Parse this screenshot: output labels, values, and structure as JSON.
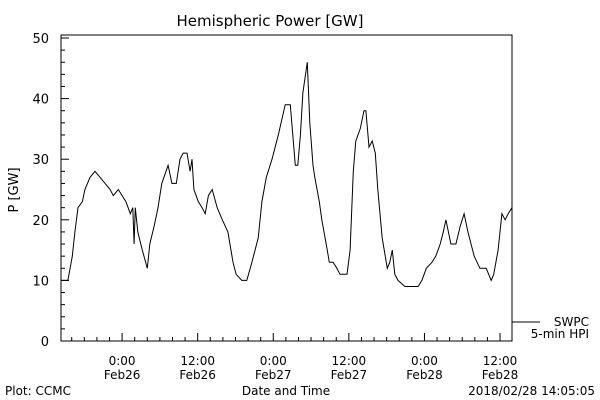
{
  "chart_data": {
    "type": "line",
    "title": "Hemispheric Power [GW]",
    "xlabel": "Date and Time",
    "ylabel": "P [GW]",
    "ylim": [
      0,
      50
    ],
    "xlim_hours_from_feb26_0000": [
      -9.7,
      61.9
    ],
    "yticks": [
      0,
      10,
      20,
      30,
      40,
      50
    ],
    "ytick_labels": [
      "0",
      "10",
      "20",
      "30",
      "40",
      "50"
    ],
    "xticks_hours": [
      0,
      12,
      24,
      36,
      48,
      60
    ],
    "xtick_labels": [
      {
        "time": "0:00",
        "date": "Feb26"
      },
      {
        "time": "12:00",
        "date": "Feb26"
      },
      {
        "time": "0:00",
        "date": "Feb27"
      },
      {
        "time": "12:00",
        "date": "Feb27"
      },
      {
        "time": "0:00",
        "date": "Feb28"
      },
      {
        "time": "12:00",
        "date": "Feb28"
      }
    ],
    "legend": {
      "placement": "bottom-right-outside",
      "line1": "SWPC",
      "line2": "5-min HPI"
    },
    "series": [
      {
        "name": "SWPC 5-min HPI",
        "x_hours": [
          -9.7,
          -8.6,
          -7.9,
          -7.5,
          -7.0,
          -6.3,
          -5.9,
          -5.1,
          -4.3,
          -3.5,
          -2.7,
          -1.9,
          -1.4,
          -0.6,
          0,
          0.6,
          1.3,
          1.7,
          1.9,
          2.1,
          2.5,
          3.2,
          4.0,
          4.4,
          5.1,
          5.7,
          6.3,
          7.3,
          7.9,
          8.6,
          9.2,
          9.7,
          10.3,
          10.8,
          11.1,
          11.4,
          12.1,
          12.7,
          13.2,
          13.7,
          14.3,
          15.1,
          15.9,
          16.8,
          17.6,
          18.1,
          19.0,
          19.8,
          20.6,
          21.6,
          22.2,
          22.9,
          23.8,
          24.8,
          25.9,
          26.7,
          27.5,
          27.9,
          28.3,
          28.7,
          29.4,
          29.8,
          30.3,
          30.6,
          31.3,
          31.7,
          32.4,
          32.9,
          33.5,
          34.1,
          34.6,
          35.7,
          36.2,
          36.7,
          37.1,
          37.8,
          38.4,
          38.7,
          39.2,
          39.7,
          40.2,
          40.6,
          41.3,
          42.1,
          42.5,
          42.9,
          43.3,
          43.8,
          44.9,
          47.0,
          47.6,
          48.3,
          49.2,
          49.8,
          50.5,
          51.0,
          51.4,
          52.2,
          53.0,
          53.7,
          54.3,
          54.9,
          55.9,
          56.8,
          57.8,
          58.6,
          59.0,
          59.7,
          60.3,
          60.8,
          61.3,
          61.9
        ],
        "values": [
          10,
          10,
          14,
          18,
          22,
          23,
          25,
          27,
          28,
          27,
          26,
          25,
          24,
          25,
          24,
          23,
          21,
          22,
          16,
          22,
          18,
          15,
          12,
          16,
          19,
          22,
          26,
          29,
          26,
          26,
          30,
          31,
          31,
          28,
          30,
          25,
          23,
          22,
          21,
          24,
          25,
          22,
          20,
          18,
          13,
          11,
          10,
          10,
          13,
          17,
          23,
          27,
          30,
          34,
          39,
          39,
          29,
          29,
          34,
          41,
          46,
          36,
          29,
          27,
          23,
          20,
          16,
          13,
          13,
          12,
          11,
          11,
          15,
          28,
          33,
          35,
          38,
          38,
          32,
          33,
          31,
          25,
          17,
          12,
          13,
          15,
          11,
          10,
          9,
          9,
          10,
          12,
          13,
          14,
          16,
          18,
          20,
          16,
          16,
          19,
          21,
          18,
          14,
          12,
          12,
          10,
          11,
          15,
          21,
          20,
          21,
          22
        ]
      }
    ]
  },
  "footer": {
    "source": "Plot: CCMC",
    "timestamp": "2018/02/28 14:05:05"
  }
}
